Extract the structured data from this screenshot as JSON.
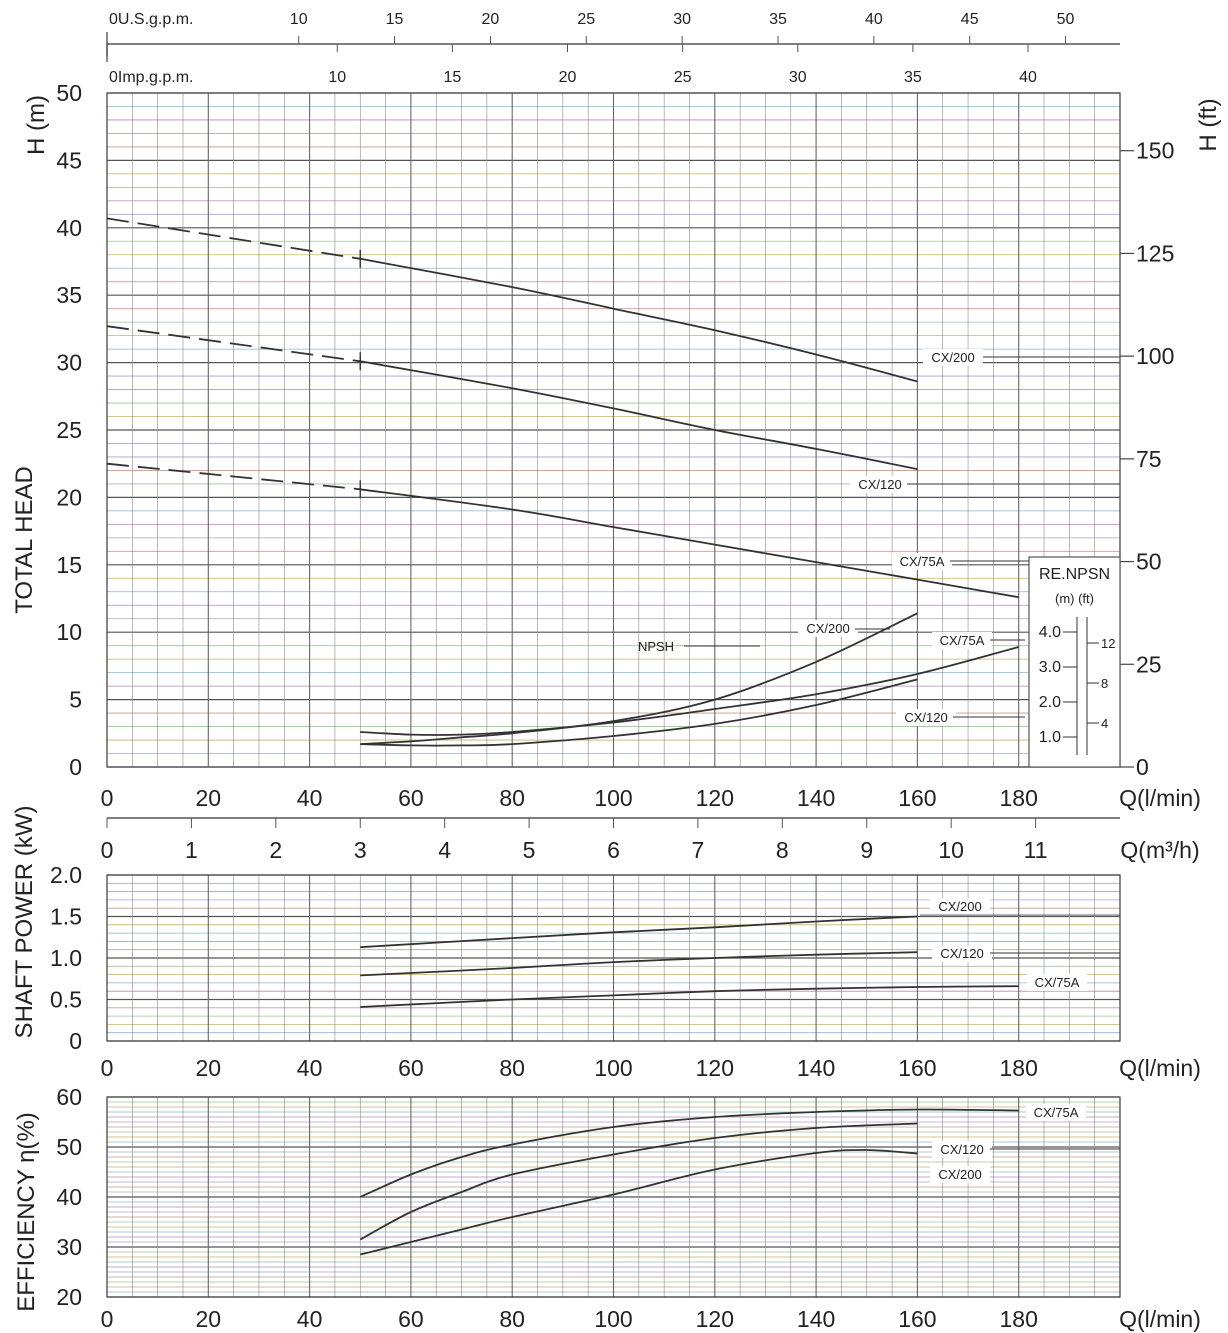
{
  "chart_data": [
    {
      "type": "line",
      "title": "",
      "xlabel": "Q(l/min)",
      "ylabel": "TOTAL HEAD",
      "ylabel_left_unit": "H (m)",
      "ylabel_right_unit": "H (ft)",
      "xlim": [
        0,
        200
      ],
      "ylim": [
        0,
        50
      ],
      "x_ticks": [
        0,
        20,
        40,
        60,
        80,
        100,
        120,
        140,
        160,
        180
      ],
      "y_ticks": [
        0,
        5,
        10,
        15,
        20,
        25,
        30,
        35,
        40,
        45,
        50
      ],
      "y_ticks_ft": [
        0,
        25,
        50,
        75,
        100,
        125,
        150
      ],
      "grid": true,
      "top_axes": [
        {
          "label": "0U.S.g.p.m.",
          "ticks": [
            10,
            15,
            20,
            25,
            30,
            35,
            40,
            45,
            50
          ]
        },
        {
          "label": "0Imp.g.p.m.",
          "ticks": [
            10,
            15,
            20,
            25,
            30,
            35,
            40
          ]
        }
      ],
      "q_m3h_axis": {
        "label": "Q(m³/h)",
        "ticks": [
          0,
          1,
          2,
          3,
          4,
          5,
          6,
          7,
          8,
          9,
          10,
          11
        ]
      },
      "series": [
        {
          "name": "CX/200",
          "x": [
            0,
            50,
            80,
            100,
            120,
            140,
            160
          ],
          "y": [
            40.7,
            37.7,
            35.6,
            34.0,
            32.4,
            30.6,
            28.6
          ],
          "dashed_until": 50
        },
        {
          "name": "CX/120",
          "x": [
            0,
            50,
            80,
            100,
            120,
            140,
            160
          ],
          "y": [
            32.7,
            30.1,
            28.1,
            26.6,
            25.0,
            23.6,
            22.1
          ],
          "dashed_until": 50
        },
        {
          "name": "CX/75A",
          "x": [
            0,
            50,
            80,
            100,
            120,
            140,
            160,
            180
          ],
          "y": [
            22.5,
            20.6,
            19.1,
            17.8,
            16.5,
            15.2,
            13.9,
            12.6
          ],
          "dashed_until": 50
        }
      ],
      "npsh": {
        "label": "NPSH",
        "series": [
          {
            "name": "CX/200",
            "x": [
              50,
              60,
              70,
              80,
              100,
              120,
              140,
              160
            ],
            "y": [
              1.7,
              1.9,
              2.2,
              2.5,
              3.4,
              5.0,
              7.8,
              11.4
            ]
          },
          {
            "name": "CX/75A",
            "x": [
              50,
              60,
              70,
              80,
              100,
              120,
              140,
              160,
              180
            ],
            "y": [
              2.6,
              2.4,
              2.4,
              2.6,
              3.3,
              4.3,
              5.4,
              6.9,
              8.9
            ]
          },
          {
            "name": "CX/120",
            "x": [
              50,
              60,
              70,
              80,
              100,
              120,
              140,
              160
            ],
            "y": [
              1.7,
              1.6,
              1.6,
              1.7,
              2.3,
              3.2,
              4.6,
              6.5
            ]
          }
        ]
      },
      "re_npsh_inset": {
        "title": "RE.NPSN",
        "units": "(m)  (ft)",
        "m_ticks": [
          "4.0",
          "3.0",
          "2.0",
          "1.0"
        ],
        "ft_ticks": [
          "12",
          "8",
          "4"
        ]
      }
    },
    {
      "type": "line",
      "title": "",
      "xlabel": "Q(l/min)",
      "ylabel": "SHAFT POWER (kW)",
      "xlim": [
        0,
        200
      ],
      "ylim": [
        0,
        2.0
      ],
      "x_ticks": [
        0,
        20,
        40,
        60,
        80,
        100,
        120,
        140,
        160,
        180
      ],
      "y_ticks": [
        "0",
        "0.5",
        "1.0",
        "1.5",
        "2.0"
      ],
      "grid": true,
      "series": [
        {
          "name": "CX/200",
          "x": [
            50,
            80,
            100,
            120,
            140,
            160
          ],
          "y": [
            1.13,
            1.24,
            1.31,
            1.37,
            1.44,
            1.5
          ]
        },
        {
          "name": "CX/120",
          "x": [
            50,
            80,
            100,
            120,
            140,
            160
          ],
          "y": [
            0.79,
            0.88,
            0.95,
            1.0,
            1.04,
            1.07
          ]
        },
        {
          "name": "CX/75A",
          "x": [
            50,
            80,
            100,
            120,
            140,
            160,
            180
          ],
          "y": [
            0.41,
            0.5,
            0.55,
            0.6,
            0.63,
            0.65,
            0.66
          ]
        }
      ]
    },
    {
      "type": "line",
      "title": "",
      "xlabel": "Q(l/min)",
      "ylabel": "EFFICIENCY η(%)",
      "xlim": [
        0,
        200
      ],
      "ylim": [
        20,
        60
      ],
      "x_ticks": [
        0,
        20,
        40,
        60,
        80,
        100,
        120,
        140,
        160,
        180
      ],
      "y_ticks": [
        20,
        30,
        40,
        50,
        60
      ],
      "grid": true,
      "series": [
        {
          "name": "CX/75A",
          "x": [
            50,
            60,
            70,
            80,
            100,
            120,
            140,
            160,
            180
          ],
          "y": [
            40.0,
            44.5,
            48.0,
            50.5,
            54.0,
            56.0,
            57.0,
            57.5,
            57.3
          ]
        },
        {
          "name": "CX/120",
          "x": [
            50,
            60,
            70,
            80,
            100,
            120,
            140,
            160
          ],
          "y": [
            31.5,
            37.0,
            41.0,
            44.5,
            48.5,
            51.8,
            53.8,
            54.7
          ]
        },
        {
          "name": "CX/200",
          "x": [
            50,
            60,
            70,
            80,
            100,
            120,
            140,
            150,
            160
          ],
          "y": [
            28.5,
            31.0,
            33.5,
            36.0,
            40.5,
            45.5,
            48.8,
            49.4,
            48.7
          ]
        }
      ]
    }
  ]
}
